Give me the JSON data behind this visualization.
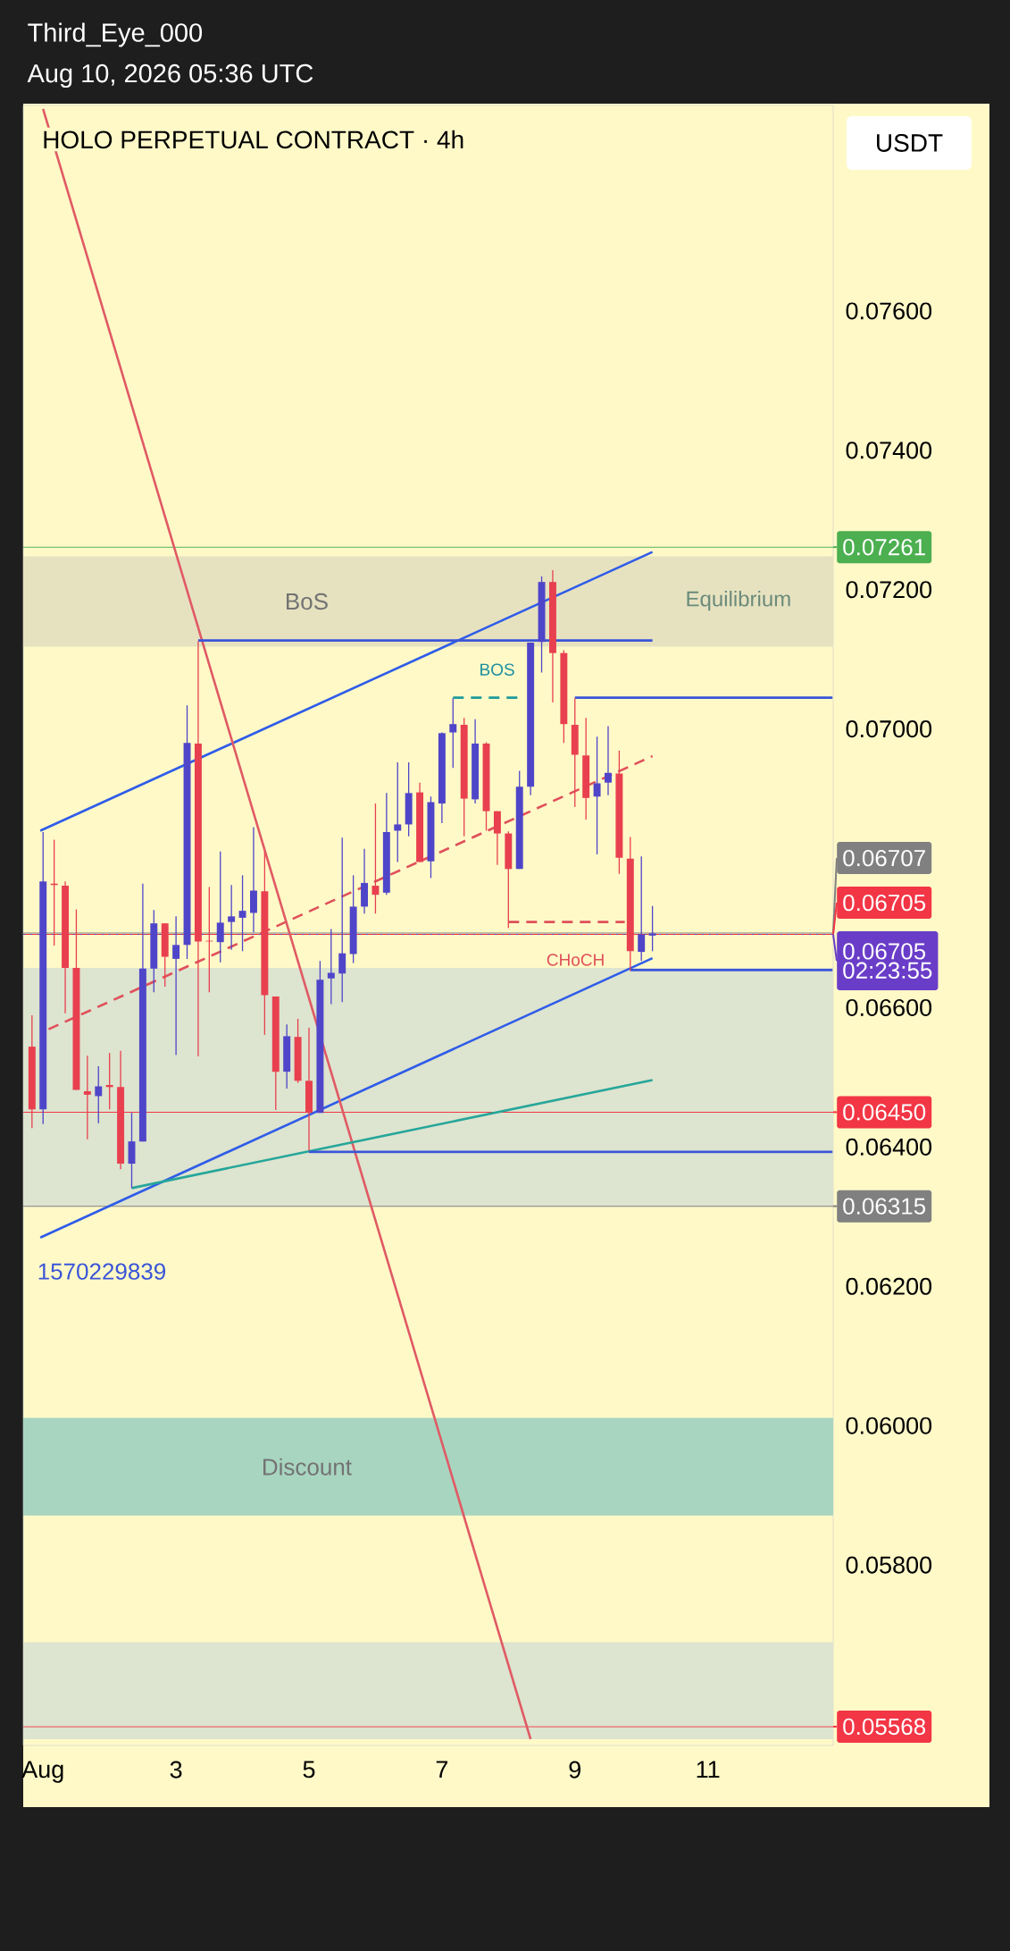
{
  "chart_data": {
    "type": "candlestick",
    "title": "HOLO PERPETUAL CONTRACT · 4h",
    "ylabel": "USDT",
    "x": [
      "2026-07-31T20:00",
      "2026-08-01T00:00",
      "2026-08-01T04:00",
      "2026-08-01T08:00",
      "2026-08-01T12:00",
      "2026-08-01T16:00",
      "2026-08-01T20:00",
      "2026-08-02T00:00",
      "2026-08-02T04:00",
      "2026-08-02T08:00",
      "2026-08-02T12:00",
      "2026-08-02T16:00",
      "2026-08-02T20:00",
      "2026-08-03T00:00",
      "2026-08-03T04:00",
      "2026-08-03T08:00",
      "2026-08-03T12:00",
      "2026-08-03T16:00",
      "2026-08-03T20:00",
      "2026-08-04T00:00",
      "2026-08-04T04:00",
      "2026-08-04T08:00",
      "2026-08-04T12:00",
      "2026-08-04T16:00",
      "2026-08-04T20:00",
      "2026-08-05T00:00",
      "2026-08-05T04:00",
      "2026-08-05T08:00",
      "2026-08-05T12:00",
      "2026-08-05T16:00",
      "2026-08-05T20:00",
      "2026-08-06T00:00",
      "2026-08-06T04:00",
      "2026-08-06T08:00",
      "2026-08-06T12:00",
      "2026-08-06T16:00",
      "2026-08-06T20:00",
      "2026-08-07T00:00",
      "2026-08-07T04:00",
      "2026-08-07T08:00",
      "2026-08-07T12:00",
      "2026-08-07T16:00",
      "2026-08-07T20:00",
      "2026-08-08T00:00",
      "2026-08-08T04:00",
      "2026-08-08T08:00",
      "2026-08-08T12:00",
      "2026-08-08T16:00",
      "2026-08-08T20:00",
      "2026-08-09T00:00",
      "2026-08-09T04:00",
      "2026-08-09T08:00",
      "2026-08-09T12:00",
      "2026-08-09T16:00",
      "2026-08-09T20:00",
      "2026-08-10T00:00",
      "2026-08-10T04:00"
    ],
    "ohlc": [
      [
        0.06544,
        0.06589,
        0.06427,
        0.06454
      ],
      [
        0.06454,
        0.06852,
        0.06433,
        0.06781
      ],
      [
        0.06778,
        0.06841,
        0.06689,
        0.06776
      ],
      [
        0.06775,
        0.06781,
        0.06592,
        0.06657
      ],
      [
        0.06657,
        0.06741,
        0.06482,
        0.06482
      ],
      [
        0.0648,
        0.06531,
        0.06411,
        0.06475
      ],
      [
        0.06473,
        0.06516,
        0.06434,
        0.06487
      ],
      [
        0.06489,
        0.06535,
        0.06454,
        0.06486
      ],
      [
        0.06486,
        0.06538,
        0.06368,
        0.06376
      ],
      [
        0.06376,
        0.06449,
        0.06341,
        0.06408
      ],
      [
        0.06408,
        0.06778,
        0.06408,
        0.06656
      ],
      [
        0.06656,
        0.0674,
        0.06622,
        0.06721
      ],
      [
        0.06721,
        0.06721,
        0.0663,
        0.06673
      ],
      [
        0.0667,
        0.06731,
        0.06532,
        0.0669
      ],
      [
        0.0669,
        0.07034,
        0.0667,
        0.0698
      ],
      [
        0.06979,
        0.07126,
        0.0653,
        0.06695
      ],
      [
        0.06696,
        0.06773,
        0.06622,
        0.06695
      ],
      [
        0.06694,
        0.06824,
        0.06665,
        0.06722
      ],
      [
        0.06723,
        0.06776,
        0.06683,
        0.06731
      ],
      [
        0.06729,
        0.0679,
        0.06681,
        0.06739
      ],
      [
        0.06736,
        0.06859,
        0.06708,
        0.06768
      ],
      [
        0.06767,
        0.06824,
        0.06561,
        0.06618
      ],
      [
        0.06616,
        0.06616,
        0.06453,
        0.06508
      ],
      [
        0.06508,
        0.06576,
        0.06484,
        0.06559
      ],
      [
        0.06558,
        0.06584,
        0.06492,
        0.06495
      ],
      [
        0.06495,
        0.06571,
        0.06395,
        0.06449
      ],
      [
        0.06449,
        0.06667,
        0.06449,
        0.0664
      ],
      [
        0.06642,
        0.06713,
        0.06605,
        0.0665
      ],
      [
        0.06649,
        0.06844,
        0.06608,
        0.06678
      ],
      [
        0.06677,
        0.0679,
        0.06664,
        0.06745
      ],
      [
        0.06745,
        0.06828,
        0.06735,
        0.06779
      ],
      [
        0.06775,
        0.06893,
        0.06735,
        0.06762
      ],
      [
        0.06765,
        0.06908,
        0.06762,
        0.06852
      ],
      [
        0.06854,
        0.06952,
        0.06809,
        0.06863
      ],
      [
        0.06863,
        0.06952,
        0.06846,
        0.06908
      ],
      [
        0.06909,
        0.06923,
        0.06809,
        0.06809
      ],
      [
        0.0681,
        0.06903,
        0.06786,
        0.06895
      ],
      [
        0.06893,
        0.06995,
        0.06865,
        0.06994
      ],
      [
        0.06995,
        0.07044,
        0.06944,
        0.07007
      ],
      [
        0.07006,
        0.07016,
        0.06846,
        0.069
      ],
      [
        0.06899,
        0.07014,
        0.06893,
        0.06979
      ],
      [
        0.06979,
        0.06981,
        0.06854,
        0.06882
      ],
      [
        0.06882,
        0.06882,
        0.06805,
        0.0685
      ],
      [
        0.0685,
        0.06853,
        0.06714,
        0.06799
      ],
      [
        0.06799,
        0.0694,
        0.06799,
        0.06917
      ],
      [
        0.06917,
        0.07124,
        0.06905,
        0.07124
      ],
      [
        0.07125,
        0.07219,
        0.07081,
        0.07211
      ],
      [
        0.07211,
        0.07228,
        0.07038,
        0.07109
      ],
      [
        0.07109,
        0.07113,
        0.0698,
        0.07007
      ],
      [
        0.07006,
        0.07044,
        0.06888,
        0.06963
      ],
      [
        0.06962,
        0.07016,
        0.0687,
        0.06901
      ],
      [
        0.06903,
        0.06989,
        0.0682,
        0.06922
      ],
      [
        0.06923,
        0.07004,
        0.06905,
        0.06937
      ],
      [
        0.06936,
        0.06969,
        0.06792,
        0.06815
      ],
      [
        0.06814,
        0.06845,
        0.06653,
        0.06681
      ],
      [
        0.0668,
        0.06817,
        0.06667,
        0.06705
      ],
      [
        0.06705,
        0.06746,
        0.06681,
        0.06705
      ]
    ],
    "colors": [
      "#e8404f",
      "#4f45c9",
      "#e8404f",
      "#e8404f",
      "#e8404f",
      "#e8404f",
      "#4f45c9",
      "#e8404f",
      "#e8404f",
      "#4f45c9",
      "#4f45c9",
      "#4f45c9",
      "#e8404f",
      "#4f45c9",
      "#4f45c9",
      "#e8404f",
      "#e8404f",
      "#4f45c9",
      "#4f45c9",
      "#4f45c9",
      "#4f45c9",
      "#e8404f",
      "#e8404f",
      "#4f45c9",
      "#e8404f",
      "#e8404f",
      "#4f45c9",
      "#4f45c9",
      "#4f45c9",
      "#4f45c9",
      "#4f45c9",
      "#e8404f",
      "#4f45c9",
      "#4f45c9",
      "#4f45c9",
      "#e8404f",
      "#4f45c9",
      "#4f45c9",
      "#4f45c9",
      "#e8404f",
      "#4f45c9",
      "#e8404f",
      "#e8404f",
      "#e8404f",
      "#4f45c9",
      "#4f45c9",
      "#4f45c9",
      "#e8404f",
      "#e8404f",
      "#e8404f",
      "#e8404f",
      "#4f45c9",
      "#4f45c9",
      "#e8404f",
      "#e8404f",
      "#4f45c9",
      "#4f45c9"
    ],
    "series": [
      {
        "type": "line",
        "color": "#2f5ce8",
        "x": [
          "2026-07-31T23:00",
          "2026-08-10T04:00"
        ],
        "values": [
          0.06854,
          0.07254
        ]
      },
      {
        "type": "line",
        "color": "#2f5ce8",
        "x": [
          "2026-07-31T23:00",
          "2026-08-10T04:00"
        ],
        "values": [
          0.0627,
          0.06671
        ]
      },
      {
        "type": "line",
        "color": "#e0505a",
        "line_style": "dashed",
        "x": [
          "2026-08-01T02:00",
          "2026-08-10T04:00"
        ],
        "values": [
          0.06569,
          0.06961
        ]
      },
      {
        "type": "line",
        "color": "#e05a64",
        "x": [
          "2026-08-01T00:00",
          "2026-08-08T08:00"
        ],
        "values": [
          0.0789,
          0.0555
        ]
      },
      {
        "type": "line",
        "color": "#26a69a",
        "x": [
          "2026-08-02T08:00",
          "2026-08-10T04:00"
        ],
        "values": [
          0.06341,
          0.06496
        ]
      },
      {
        "type": "line",
        "color": "#3a55d8",
        "x": [
          "2026-08-03T08:00",
          "2026-08-10T04:00"
        ],
        "values": [
          0.07127,
          0.07127
        ]
      },
      {
        "type": "line",
        "color": "#3a55d8",
        "x": [
          "2026-08-09T00:00",
          "2026-08-12T21:00"
        ],
        "values": [
          0.07045,
          0.07045
        ]
      },
      {
        "type": "line",
        "color": "#3a55d8",
        "x": [
          "2026-08-05T00:00",
          "2026-08-12T21:00"
        ],
        "values": [
          0.06393,
          0.06393
        ]
      },
      {
        "type": "line",
        "color": "#3a55d8",
        "x": [
          "2026-08-09T20:00",
          "2026-08-12T21:00"
        ],
        "values": [
          0.06654,
          0.06654
        ]
      },
      {
        "type": "line",
        "color": "#1e9a9a",
        "line_style": "dashed",
        "x": [
          "2026-08-07T04:00",
          "2026-08-08T04:00"
        ],
        "values": [
          0.07045,
          0.07045
        ]
      },
      {
        "type": "line",
        "color": "#e0505a",
        "line_style": "dashed",
        "x": [
          "2026-08-08T00:00",
          "2026-08-09T18:00"
        ],
        "values": [
          0.06723,
          0.06723
        ]
      }
    ],
    "bands": [
      {
        "axis": "y",
        "from": 0.06315,
        "to": 0.06657,
        "color": "#dde4cf"
      },
      {
        "axis": "y",
        "from": 0.0555,
        "to": 0.05689,
        "color": "#dde4cf"
      },
      {
        "axis": "y",
        "from": 0.05871,
        "to": 0.06011,
        "label": "Discount",
        "color": "#a8d5c0"
      },
      {
        "axis": "y",
        "from": 0.07118,
        "to": 0.07248,
        "label": "BoS",
        "color": "#e6e2c0"
      }
    ],
    "ref_lines": [
      {
        "axis": "y",
        "value": 0.07261,
        "label": "0.07261",
        "color": "#4caf50"
      },
      {
        "axis": "y",
        "value": 0.06707,
        "label": "0.06707",
        "color": "#808080"
      },
      {
        "axis": "y",
        "value": 0.06705,
        "label": "0.06705",
        "color": "#f23645"
      },
      {
        "axis": "y",
        "value": 0.06705,
        "label": "0.06705",
        "color": "#6a3dc8",
        "line_style": "dotted"
      },
      {
        "axis": "y",
        "value": 0.0645,
        "label": "0.06450",
        "color": "#f23645"
      },
      {
        "axis": "y",
        "value": 0.06315,
        "label": "0.06315",
        "color": "#808080"
      },
      {
        "axis": "y",
        "value": 0.05568,
        "label": "0.05568",
        "color": "#f23645"
      }
    ],
    "annotations": [
      "Third_Eye_000",
      "Aug 10, 2026 05:36 UTC",
      "02:23:55",
      "BOS",
      "CHoCH",
      "Equilibrium",
      "1570229839"
    ],
    "xlim": [
      "2026-07-31T16:50",
      "2026-08-12T21:15"
    ],
    "ylim": [
      0.05541,
      0.07895
    ],
    "xticks": [
      {
        "value": "2026-08-01",
        "label": "Aug"
      },
      {
        "value": "2026-08-03",
        "label": "3"
      },
      {
        "value": "2026-08-05",
        "label": "5"
      },
      {
        "value": "2026-08-07",
        "label": "7"
      },
      {
        "value": "2026-08-09",
        "label": "9"
      },
      {
        "value": "2026-08-11",
        "label": "11"
      }
    ],
    "yticks": [
      {
        "value": 0.058,
        "label": "0.05800"
      },
      {
        "value": 0.06,
        "label": "0.06000"
      },
      {
        "value": 0.062,
        "label": "0.06200"
      },
      {
        "value": 0.064,
        "label": "0.06400"
      },
      {
        "value": 0.066,
        "label": "0.06600"
      },
      {
        "value": 0.07,
        "label": "0.07000"
      },
      {
        "value": 0.072,
        "label": "0.07200"
      },
      {
        "value": 0.074,
        "label": "0.07400"
      },
      {
        "value": 0.076,
        "label": "0.07600"
      }
    ]
  }
}
